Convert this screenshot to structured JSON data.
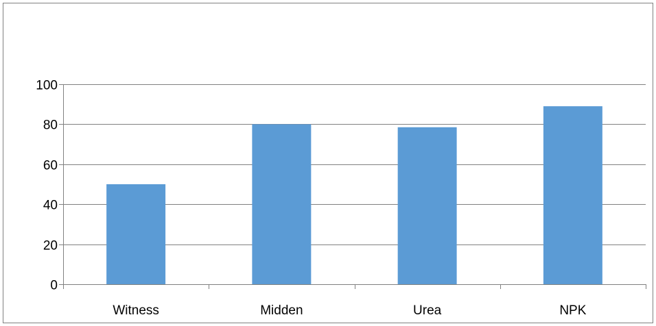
{
  "chart_data": {
    "type": "bar",
    "categories": [
      "Witness",
      "Midden",
      "Urea",
      "NPK"
    ],
    "values": [
      50,
      80,
      78.5,
      89
    ],
    "title": "",
    "xlabel": "",
    "ylabel": "",
    "ylim": [
      0,
      100
    ],
    "yticks": [
      0,
      20,
      40,
      60,
      80,
      100
    ],
    "ytick_labels": [
      "0",
      "20",
      "40",
      "60",
      "80",
      "100"
    ],
    "grid": true,
    "legend": "none",
    "colors": {
      "bar": "#5b9bd5",
      "grid": "#808080",
      "axis": "#808080"
    }
  }
}
